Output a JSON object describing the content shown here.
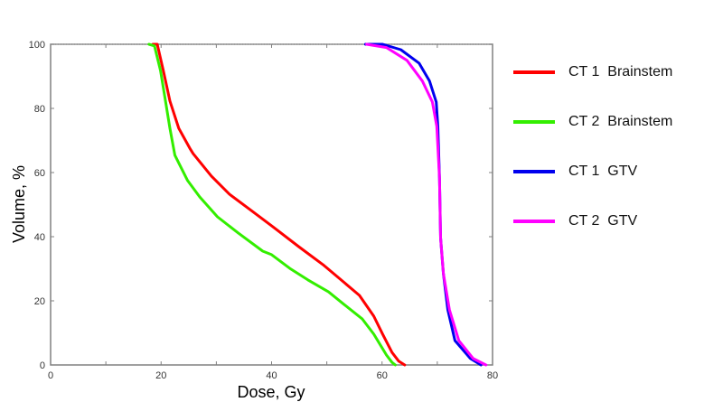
{
  "chart_data": {
    "type": "line",
    "title": "",
    "xlabel": "Dose, Gy",
    "ylabel": "Volume, %",
    "xlim": [
      0,
      80
    ],
    "ylim": [
      0,
      100
    ],
    "x_ticks": [
      0,
      20,
      40,
      60,
      80
    ],
    "x_minor_ticks": [
      10,
      30,
      50,
      70
    ],
    "y_ticks": [
      0,
      20,
      40,
      60,
      80,
      100
    ],
    "grid": false,
    "legend_position": "right",
    "series": [
      {
        "name": "CT 1  Brainstem",
        "color": "#ff0000",
        "points": [
          [
            18.5,
            100
          ],
          [
            19.3,
            100
          ],
          [
            20.4,
            91.8
          ],
          [
            21.6,
            82.3
          ],
          [
            23.2,
            73.8
          ],
          [
            25.3,
            67.3
          ],
          [
            25.8,
            65.9
          ],
          [
            29.1,
            58.9
          ],
          [
            32.4,
            53.2
          ],
          [
            36.3,
            48.2
          ],
          [
            40.0,
            43.4
          ],
          [
            44.9,
            36.9
          ],
          [
            49.3,
            31.3
          ],
          [
            52.6,
            26.5
          ],
          [
            55.9,
            21.7
          ],
          [
            58.5,
            15.2
          ],
          [
            60.1,
            9.6
          ],
          [
            61.8,
            3.9
          ],
          [
            63.0,
            1.2
          ],
          [
            64.1,
            0
          ]
        ]
      },
      {
        "name": "CT 2  Brainstem",
        "color": "#33ee00",
        "points": [
          [
            17.8,
            100
          ],
          [
            18.8,
            99.5
          ],
          [
            19.9,
            91.8
          ],
          [
            20.8,
            82.3
          ],
          [
            21.6,
            73.8
          ],
          [
            22.5,
            65.4
          ],
          [
            24.8,
            57.5
          ],
          [
            27.0,
            52.4
          ],
          [
            30.2,
            46.2
          ],
          [
            34.0,
            41.1
          ],
          [
            38.4,
            35.5
          ],
          [
            40.0,
            34.4
          ],
          [
            43.3,
            30.1
          ],
          [
            46.6,
            26.5
          ],
          [
            50.3,
            22.8
          ],
          [
            53.1,
            18.9
          ],
          [
            56.4,
            14.4
          ],
          [
            58.5,
            9.6
          ],
          [
            60.8,
            3.1
          ],
          [
            61.8,
            0.8
          ],
          [
            62.4,
            0
          ]
        ]
      },
      {
        "name": "CT 1  GTV",
        "color": "#0000ee",
        "points": [
          [
            57.0,
            100
          ],
          [
            60.1,
            100
          ],
          [
            63.4,
            98.3
          ],
          [
            66.7,
            94.1
          ],
          [
            68.6,
            88.5
          ],
          [
            69.8,
            82.0
          ],
          [
            70.1,
            74.4
          ],
          [
            70.4,
            58.3
          ],
          [
            70.6,
            39.7
          ],
          [
            71.1,
            28.5
          ],
          [
            71.9,
            17.2
          ],
          [
            73.2,
            7.6
          ],
          [
            76.0,
            2.0
          ],
          [
            77.9,
            0
          ]
        ]
      },
      {
        "name": "CT 2  GTV",
        "color": "#ff00ff",
        "points": [
          [
            57.2,
            100
          ],
          [
            60.8,
            99.0
          ],
          [
            64.5,
            95.0
          ],
          [
            67.3,
            88.5
          ],
          [
            69.1,
            82.0
          ],
          [
            69.9,
            74.4
          ],
          [
            70.4,
            58.3
          ],
          [
            70.6,
            39.7
          ],
          [
            71.1,
            28.5
          ],
          [
            72.2,
            17.2
          ],
          [
            73.9,
            7.6
          ],
          [
            76.5,
            2.0
          ],
          [
            78.8,
            0
          ]
        ]
      }
    ]
  },
  "legend": {
    "items": [
      {
        "label": "CT 1  Brainstem",
        "color": "#ff0000"
      },
      {
        "label": "CT 2  Brainstem",
        "color": "#33ee00"
      },
      {
        "label": "CT 1  GTV",
        "color": "#0000ee"
      },
      {
        "label": "CT 2  GTV",
        "color": "#ff00ff"
      }
    ]
  },
  "axes": {
    "x_title": "Dose, Gy",
    "y_title": "Volume, %",
    "axis_color": "#808080"
  }
}
